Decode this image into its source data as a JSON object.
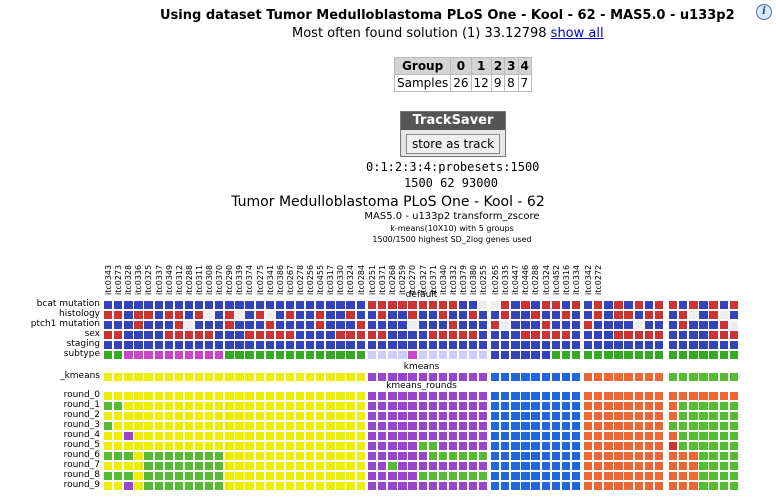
{
  "header": {
    "title": "Using dataset Tumor Medulloblastoma PLoS One - Kool - 62 - MAS5.0 - u133p2",
    "info_icon": "info-icon",
    "solution_text": "Most often found solution (1) 33.12798",
    "show_all_label": "show all"
  },
  "group_table": {
    "headers": [
      "Group",
      "0",
      "1",
      "2",
      "3",
      "4"
    ],
    "row_label": "Samples",
    "values": [
      "26",
      "12",
      "9",
      "8",
      "7"
    ]
  },
  "tracksaver": {
    "title": "TrackSaver",
    "button_label": "store as track"
  },
  "probeset_line1": "0:1:2:3:4:probesets:1500",
  "probeset_line2": "1500 62 93000",
  "heatmap": {
    "title": "Tumor Medulloblastoma PLoS One - Kool - 62",
    "line1": "MAS5.0 - u133p2 transform_zscore",
    "line2": "k-means(10X10) with 5 groups",
    "line3": "1500/1500 highest SD_2log genes used",
    "section_default": "default",
    "section_kmeans": "kmeans",
    "section_rounds": "kmeans_rounds",
    "columns": [
      "itc0343",
      "itc0273",
      "itc0328",
      "itc0336",
      "itc0325",
      "itc0337",
      "itc0349",
      "itc0312",
      "itc0288",
      "itc0311",
      "itc0308",
      "itc0370",
      "itc0290",
      "itc0339",
      "itc0374",
      "itc0275",
      "itc0341",
      "itc0386",
      "itc0267",
      "itc0278",
      "itc0256",
      "itc0455",
      "itc0317",
      "itc0330",
      "itc0324",
      "itc0284",
      "itc0251",
      "itc0371",
      "itc0268",
      "itc0259",
      "itc0270",
      "itc0327",
      "itc0371",
      "itc0340",
      "itc0332",
      "itc0379",
      "itc0380",
      "itc0255",
      "itc0265",
      "itc0335",
      "itc0447",
      "itc0446",
      "itc0288",
      "itc0324",
      "itc0452",
      "itc0316",
      "itc0334",
      "itc0342",
      "itc0272"
    ],
    "default_rows": [
      "bcat mutation",
      "histology",
      "ptch1 mutation",
      "sex",
      "staging",
      "subtype"
    ],
    "kmeans_row": "_kmeans",
    "round_rows": [
      "round_0",
      "round_1",
      "round_2",
      "round_3",
      "round_4",
      "round_5",
      "round_6",
      "round_7",
      "round_8",
      "round_9"
    ],
    "colors": {
      "blue": "#3344bb",
      "red": "#cc3333",
      "white": "#eeeeee",
      "green": "#33aa22",
      "magenta": "#cc44cc",
      "lavender": "#ccccff",
      "yellow": "#eeee00",
      "purple": "#9944cc",
      "cyan": "#2266dd",
      "orange": "#ee6633",
      "lgreen": "#55bb33"
    }
  }
}
